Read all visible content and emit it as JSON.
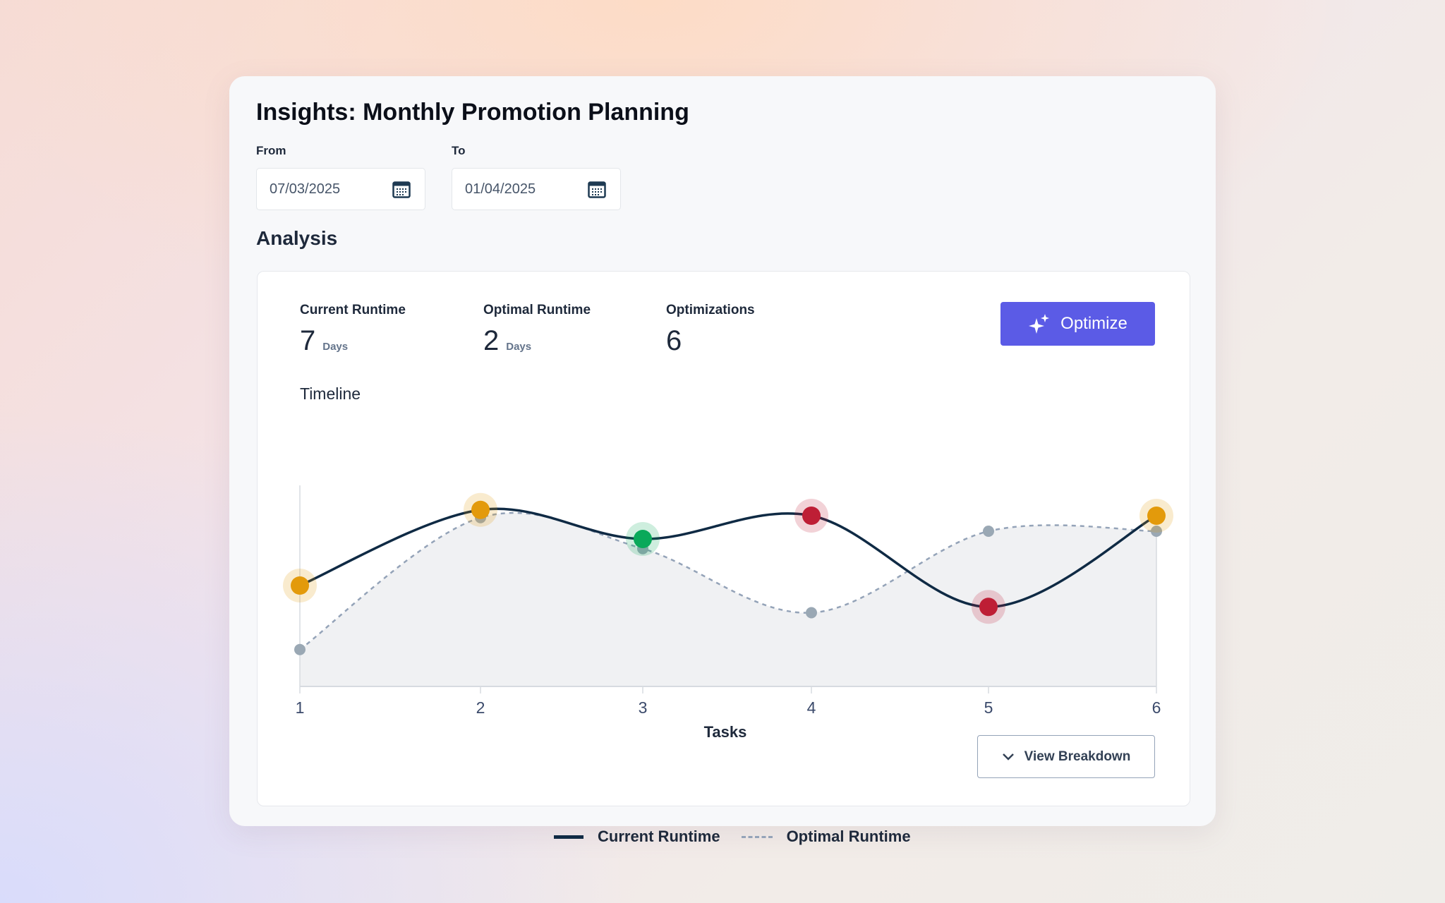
{
  "header": {
    "title": "Insights: Monthly Promotion Planning"
  },
  "filters": {
    "from_label": "From",
    "from_value": "07/03/2025",
    "to_label": "To",
    "to_value": "01/04/2025",
    "icon": "calendar-icon"
  },
  "section_title": "Analysis",
  "stats": [
    {
      "label": "Current Runtime",
      "value": "7",
      "unit": "Days"
    },
    {
      "label": "Optimal Runtime",
      "value": "2",
      "unit": "Days"
    },
    {
      "label": "Optimizations",
      "value": "6"
    }
  ],
  "optimize_button": {
    "label": "Optimize",
    "icon": "sparkles-icon",
    "color": "#5b5be6"
  },
  "chart_data": {
    "type": "line",
    "title": "Timeline",
    "xlabel": "Tasks",
    "ylabel": "",
    "categories": [
      "1",
      "2",
      "3",
      "4",
      "5",
      "6"
    ],
    "y_axis_labels_shown": false,
    "series": [
      {
        "name": "Current Runtime",
        "style": "solid",
        "color": "#0f2a44",
        "values": [
          52,
          91,
          76,
          88,
          41,
          88
        ],
        "marker_colors": [
          "#e39a0b",
          "#e39a0b",
          "#0aa95a",
          "#be1e35",
          "#be1e35",
          "#e39a0b"
        ]
      },
      {
        "name": "Optimal Runtime",
        "style": "dashed",
        "color": "#94a3b8",
        "values": [
          19,
          87,
          71,
          38,
          80,
          80
        ],
        "area_fill": "#f0f1f3"
      }
    ],
    "legend": "bottom-center"
  },
  "view_breakdown": {
    "label": "View Breakdown",
    "icon": "chevron-down-icon"
  }
}
